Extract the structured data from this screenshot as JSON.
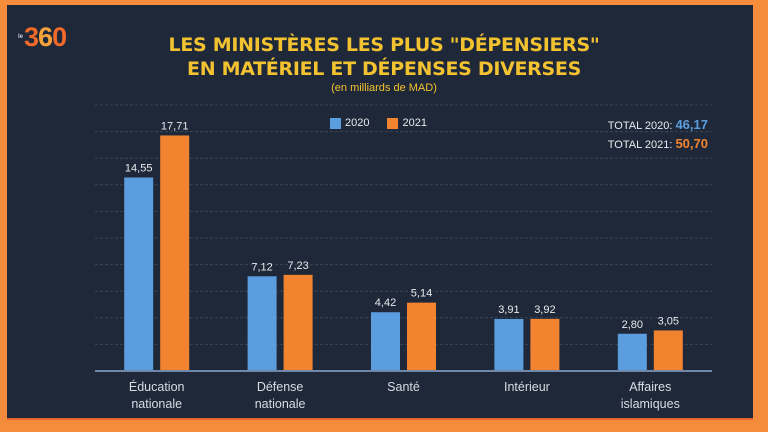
{
  "brand": {
    "logo_prefix": "le",
    "logo_text": "360"
  },
  "chart_data": {
    "type": "bar",
    "title": "LES MINISTÈRES LES PLUS \"DÉPENSIERS\" EN MATÉRIEL ET DÉPENSES DIVERSES",
    "title_lines": [
      "LES MINISTÈRES LES PLUS \"DÉPENSIERS\"",
      "EN MATÉRIEL ET DÉPENSES DIVERSES"
    ],
    "subtitle": "(en milliards de MAD)",
    "xlabel": "",
    "ylabel": "",
    "ylim": [
      0,
      20
    ],
    "grid": true,
    "legend_position": "top-center",
    "categories": [
      [
        "Éducation",
        "nationale"
      ],
      [
        "Défense",
        "nationale"
      ],
      [
        "Santé"
      ],
      [
        "Intérieur"
      ],
      [
        "Affaires",
        "islamiques"
      ]
    ],
    "series": [
      {
        "name": "2020",
        "color": "#5b9ee0",
        "values": [
          14.55,
          7.12,
          4.42,
          3.91,
          2.8
        ],
        "labels": [
          "14,55",
          "7,12",
          "4,42",
          "3,91",
          "2,80"
        ]
      },
      {
        "name": "2021",
        "color": "#f28430",
        "values": [
          17.71,
          7.23,
          5.14,
          3.92,
          3.05
        ],
        "labels": [
          "17,71",
          "7,23",
          "5,14",
          "3,92",
          "3,05"
        ]
      }
    ],
    "totals": [
      {
        "label": "TOTAL 2020:",
        "value": "46,17"
      },
      {
        "label": "TOTAL 2021:",
        "value": "50,70"
      }
    ]
  }
}
